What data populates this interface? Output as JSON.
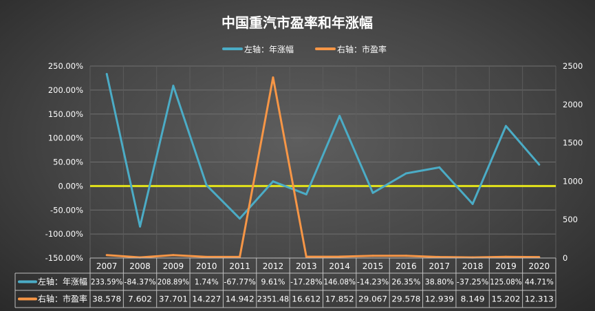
{
  "chart_data": {
    "type": "line",
    "title": "中国重汽市盈率和年涨幅",
    "categories": [
      "2007",
      "2008",
      "2009",
      "2010",
      "2011",
      "2012",
      "2013",
      "2014",
      "2015",
      "2016",
      "2017",
      "2018",
      "2019",
      "2020"
    ],
    "series": [
      {
        "name": "左轴：年涨幅",
        "axis": "left",
        "color": "#4bacc6",
        "values": [
          233.59,
          -84.37,
          208.89,
          1.74,
          -67.77,
          9.61,
          -17.28,
          146.08,
          -14.23,
          26.35,
          38.8,
          -37.25,
          125.08,
          44.71
        ],
        "labels": [
          "233.59%",
          "-84.37%",
          "208.89%",
          "1.74%",
          "-67.77%",
          "9.61%",
          "-17.28%",
          "146.08%",
          "-14.23%",
          "26.35%",
          "38.80%",
          "-37.25%",
          "125.08%",
          "44.71%"
        ]
      },
      {
        "name": "右轴：市盈率",
        "axis": "right",
        "color": "#f79646",
        "values": [
          38.578,
          7.602,
          37.701,
          14.227,
          14.942,
          2351.48,
          16.612,
          17.852,
          29.067,
          29.578,
          12.939,
          8.149,
          15.202,
          12.313
        ],
        "labels": [
          "38.578",
          "7.602",
          "37.701",
          "14.227",
          "14.942",
          "2351.48",
          "16.612",
          "17.852",
          "29.067",
          "29.578",
          "12.939",
          "8.149",
          "15.202",
          "12.313"
        ]
      }
    ],
    "y_left": {
      "range": [
        -150,
        250
      ],
      "ticks": [
        "250.00%",
        "200.00%",
        "150.00%",
        "100.00%",
        "50.00%",
        "0.00%",
        "-50.00%",
        "-100.00%",
        "-150.00%"
      ]
    },
    "y_right": {
      "range": [
        0,
        2500
      ],
      "ticks": [
        "2500",
        "2000",
        "1500",
        "1000",
        "500",
        "0"
      ]
    },
    "zero_line_color": "#e5e51a",
    "grid": true,
    "legend": "top",
    "data_table": true
  }
}
